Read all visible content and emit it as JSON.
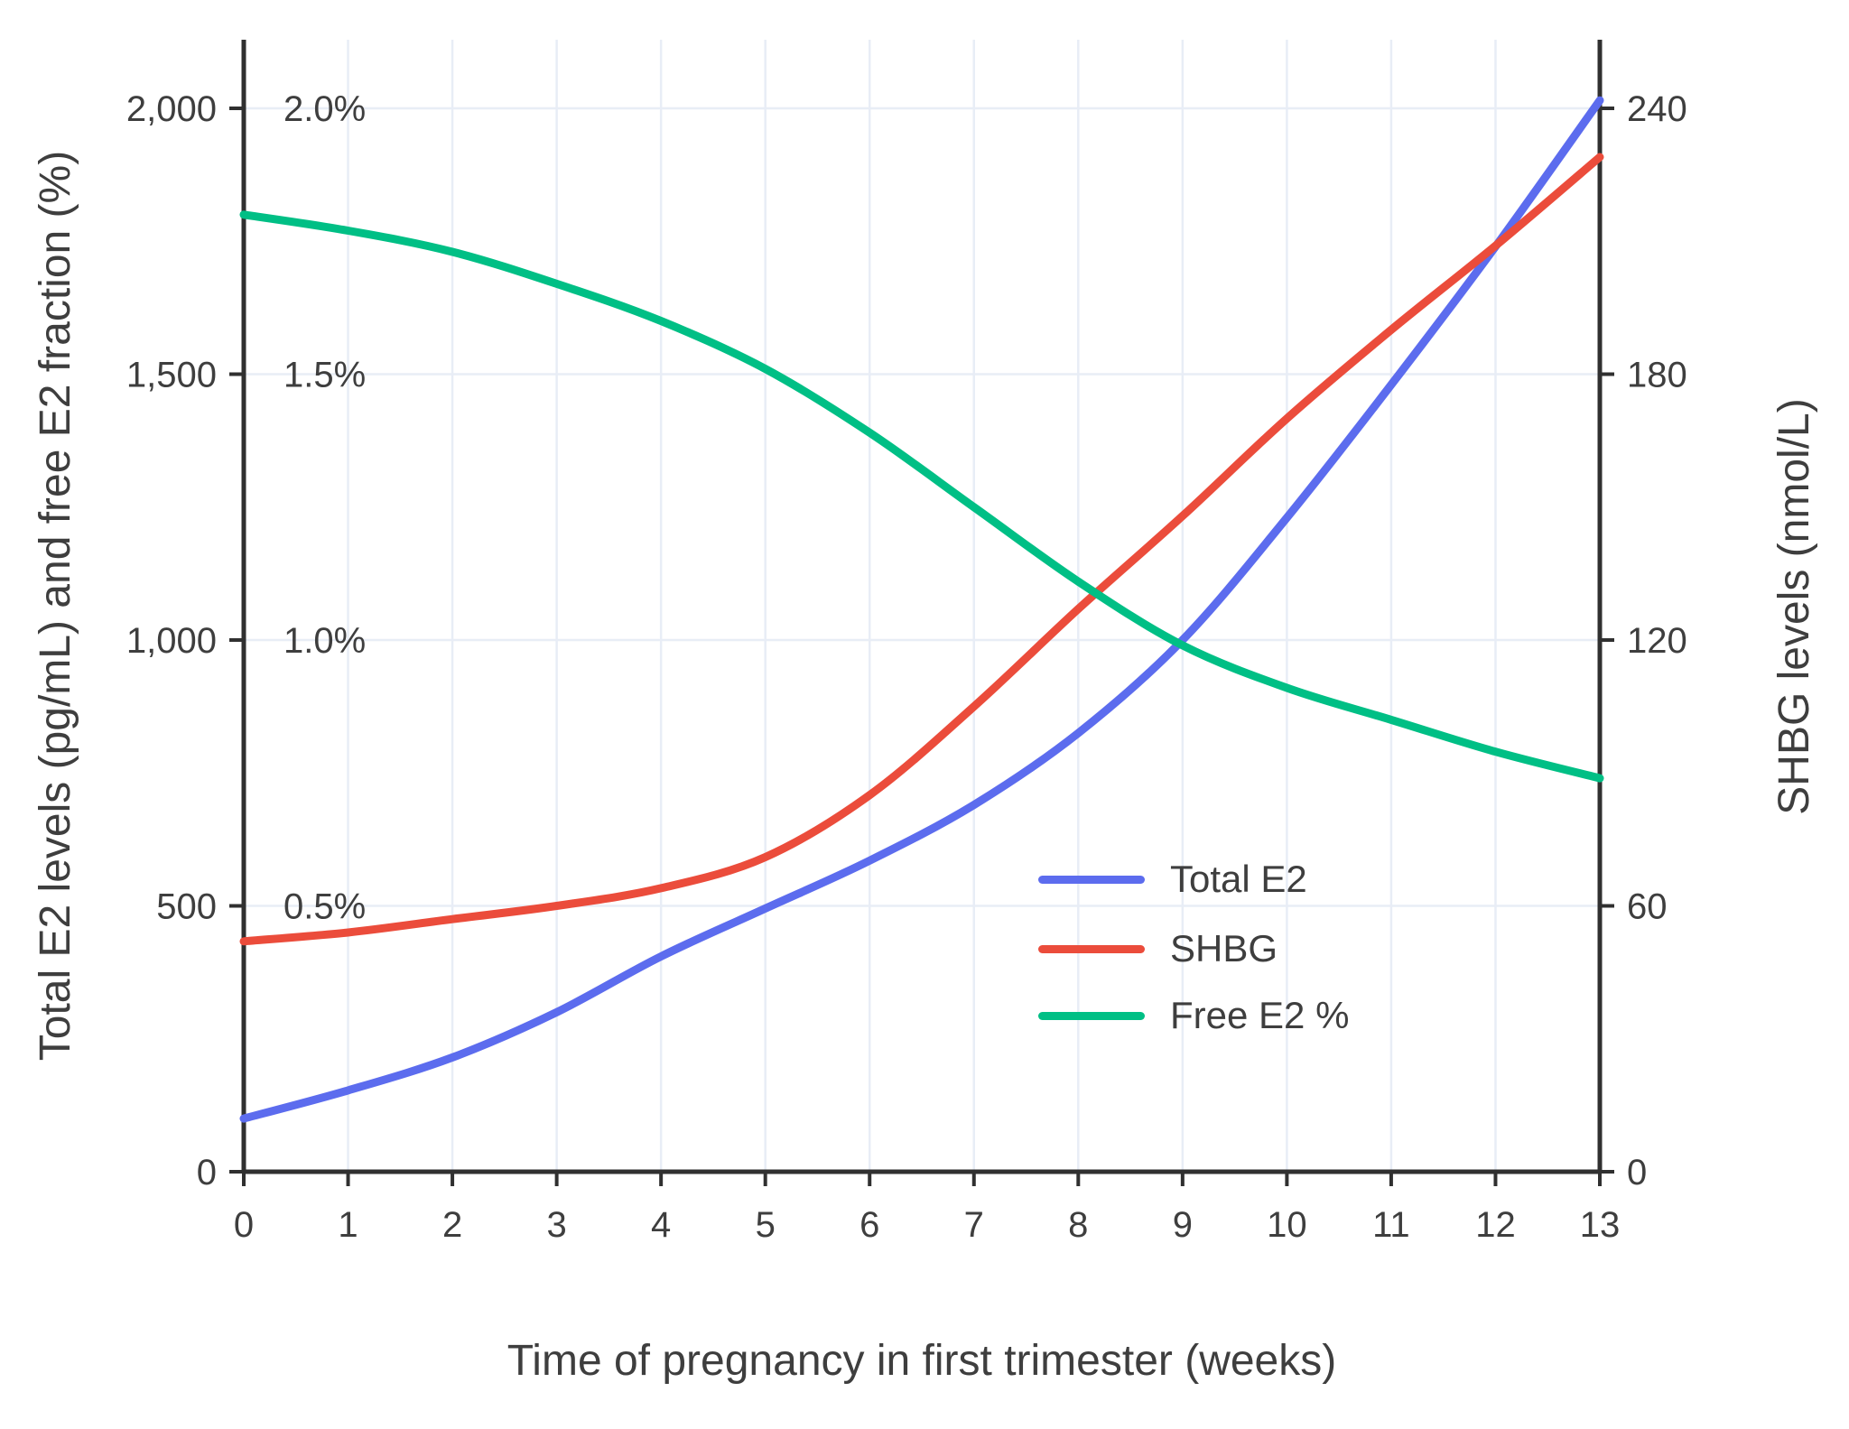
{
  "chart_data": {
    "type": "line",
    "title": "",
    "xlabel": "Time of pregnancy in first trimester (weeks)",
    "ylabel_left": "Total E2 levels (pg/mL) and free E2 fraction (%)",
    "ylabel_right": "SHBG levels (nmol/L)",
    "x": [
      0,
      1,
      2,
      3,
      4,
      5,
      6,
      7,
      8,
      9,
      10,
      11,
      12,
      13
    ],
    "x_ticks": [
      "0",
      "1",
      "2",
      "3",
      "4",
      "5",
      "6",
      "7",
      "8",
      "9",
      "10",
      "11",
      "12",
      "13"
    ],
    "series": [
      {
        "name": "Total E2",
        "axis": "left",
        "unit": "pg/mL",
        "color": "#5c6cee",
        "values": [
          100,
          153,
          215,
          300,
          405,
          495,
          585,
          690,
          825,
          1000,
          1230,
          1480,
          1740,
          2015
        ]
      },
      {
        "name": "SHBG",
        "axis": "right",
        "unit": "nmol/L",
        "color": "#eb4c3b",
        "values": [
          52,
          54,
          57,
          60,
          64,
          71,
          85,
          105,
          127,
          148,
          170,
          190,
          209,
          229
        ]
      },
      {
        "name": "Free E2 %",
        "axis": "left_percent",
        "unit": "%",
        "color": "#00bf85",
        "values": [
          1.8,
          1.77,
          1.73,
          1.67,
          1.6,
          1.51,
          1.39,
          1.25,
          1.11,
          0.99,
          0.91,
          0.85,
          0.79,
          0.74
        ]
      }
    ],
    "left_axis": {
      "range": [
        0,
        2000
      ],
      "tick_values": [
        0,
        500,
        1000,
        1500,
        2000
      ],
      "tick_labels": [
        "0",
        "500",
        "1,000",
        "1,500",
        "2,000"
      ]
    },
    "percent_labels": [
      {
        "text": "0.5%",
        "value": 500
      },
      {
        "text": "1.0%",
        "value": 1000
      },
      {
        "text": "1.5%",
        "value": 1500
      },
      {
        "text": "2.0%",
        "value": 2000
      }
    ],
    "right_axis": {
      "range": [
        0,
        240
      ],
      "tick_values": [
        0,
        60,
        120,
        180,
        240
      ],
      "tick_labels": [
        "0",
        "60",
        "120",
        "180",
        "240"
      ]
    },
    "grid": true,
    "legend_position": "inside-right"
  },
  "colors": {
    "background": "#ffffff",
    "grid": "#e8edf6",
    "axis": "#303030",
    "text": "#3e3e3e",
    "total_e2": "#5c6cee",
    "shbg": "#eb4c3b",
    "free_e2": "#00bf85"
  }
}
